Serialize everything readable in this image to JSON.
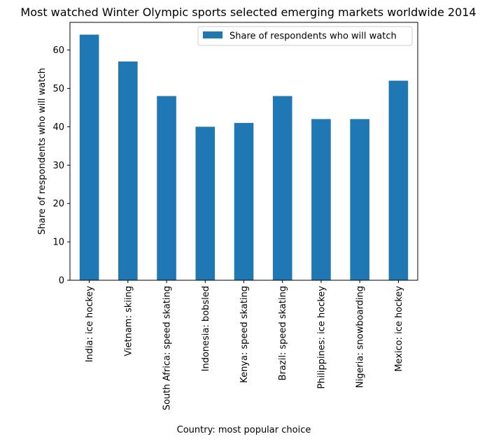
{
  "chart_data": {
    "type": "bar",
    "title": "Most watched Winter Olympic sports selected emerging markets worldwide 2014",
    "xlabel": "Country: most popular choice",
    "ylabel": "Share of respondents who will watch",
    "categories": [
      "India: ice hockey",
      "Vietnam: skiing",
      "South Africa: speed skating",
      "Indonesia: bobsled",
      "Kenya: speed skating",
      "Brazil: speed skating",
      "Philippines: ice hockey",
      "Nigeria: snowboarding",
      "Mexico: ice hockey"
    ],
    "series": [
      {
        "name": "Share of respondents who will watch",
        "values": [
          64,
          57,
          48,
          40,
          41,
          48,
          42,
          42,
          52
        ]
      }
    ],
    "ylim": [
      0,
      67.2
    ],
    "yticks": [
      0,
      10,
      20,
      30,
      40,
      50,
      60
    ],
    "grid": false,
    "legend_position": "top-right",
    "colors": {
      "bar": "#1f77b4"
    }
  }
}
